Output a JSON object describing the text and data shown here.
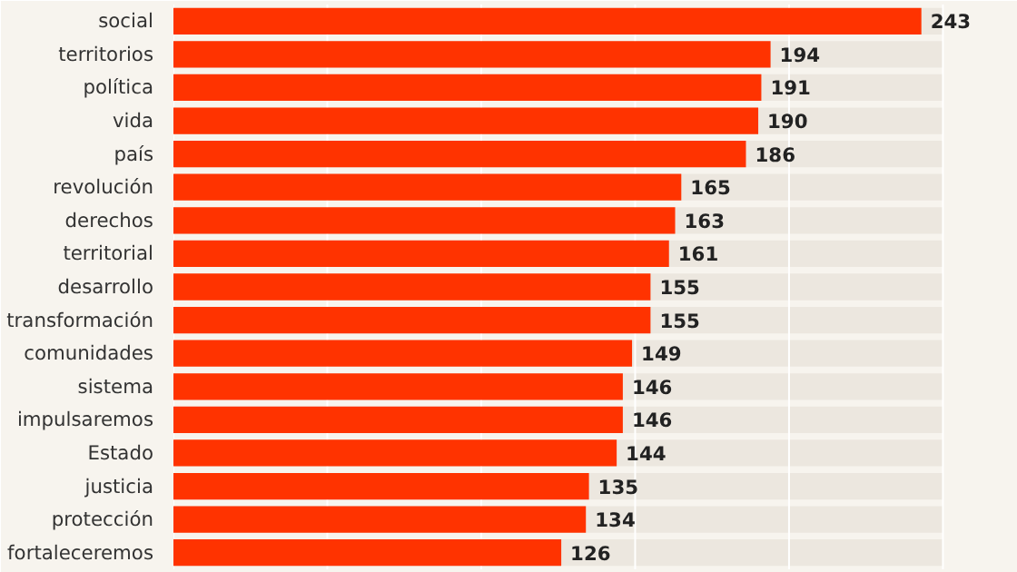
{
  "chart_data": {
    "type": "bar",
    "orientation": "horizontal",
    "categories": [
      "social",
      "territorios",
      "política",
      "vida",
      "país",
      "revolución",
      "derechos",
      "territorial",
      "desarrollo",
      "transformación",
      "comunidades",
      "sistema",
      "impulsaremos",
      "Estado",
      "justicia",
      "protección",
      "fortaleceremos"
    ],
    "values": [
      243,
      194,
      191,
      190,
      186,
      165,
      163,
      161,
      155,
      155,
      149,
      146,
      146,
      144,
      135,
      134,
      126
    ],
    "color": "#ff3300",
    "data_labels": true,
    "xlim": [
      0,
      250
    ],
    "xticks": [
      {
        "value": 0,
        "label": null
      },
      {
        "value": 50,
        "label": null
      },
      {
        "value": 100,
        "label": null
      },
      {
        "value": 150,
        "label": null
      },
      {
        "value": 200,
        "label": null
      },
      {
        "value": 250,
        "label": null
      }
    ],
    "grid": "x",
    "tick_labels": "y"
  }
}
